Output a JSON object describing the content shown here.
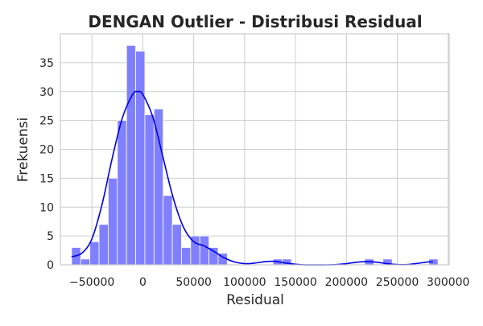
{
  "chart_data": {
    "type": "bar",
    "title": "DENGAN Outlier - Distribusi Residual",
    "xlabel": "Residual",
    "ylabel": "Frekuensi",
    "xlim": [
      -81000,
      301000
    ],
    "ylim": [
      0,
      40
    ],
    "xticks": [
      -50000,
      0,
      50000,
      100000,
      150000,
      200000,
      250000,
      300000
    ],
    "xtick_labels": [
      "−50000",
      "0",
      "50000",
      "100000",
      "150000",
      "200000",
      "250000",
      "300000"
    ],
    "yticks": [
      0,
      5,
      10,
      15,
      20,
      25,
      30,
      35
    ],
    "ytick_labels": [
      "0",
      "5",
      "10",
      "15",
      "20",
      "25",
      "30",
      "35"
    ],
    "grid": true,
    "bin_start": -70000,
    "bin_width": 9000,
    "bin_counts": [
      3,
      1,
      4,
      7,
      15,
      25,
      38,
      37,
      26,
      27,
      12,
      7,
      3,
      5,
      5,
      3,
      2,
      0,
      0,
      0,
      0,
      0,
      1,
      1,
      0,
      0,
      0,
      0,
      0,
      0,
      0,
      0,
      1,
      0,
      1,
      0,
      0,
      0,
      0,
      1
    ],
    "kde": {
      "x": [
        -70000,
        -60000,
        -50000,
        -40000,
        -30000,
        -20000,
        -10000,
        -5000,
        0,
        10000,
        20000,
        30000,
        40000,
        50000,
        60000,
        70000,
        80000,
        90000,
        100000,
        110000,
        120000,
        130000,
        140000,
        150000,
        160000,
        170000,
        180000,
        190000,
        200000,
        210000,
        220000,
        230000,
        240000,
        250000,
        260000,
        270000,
        280000,
        285000
      ],
      "y": [
        1.4,
        2.0,
        4.5,
        10.5,
        18.5,
        25.5,
        29.5,
        30.0,
        29.5,
        25.5,
        18.5,
        11.5,
        6.5,
        4.0,
        3.3,
        2.3,
        1.2,
        0.5,
        0.2,
        0.3,
        0.55,
        0.6,
        0.3,
        0.1,
        0.0,
        0.0,
        0.0,
        0.05,
        0.2,
        0.45,
        0.55,
        0.45,
        0.2,
        0.05,
        0.05,
        0.25,
        0.5,
        0.5
      ]
    },
    "colors": {
      "bar_fill": "#8080ff",
      "bar_edge": "#ffffff",
      "kde_line": "#0000e6",
      "grid": "#cccccc",
      "spine": "#cccccc",
      "text": "#262626"
    }
  }
}
